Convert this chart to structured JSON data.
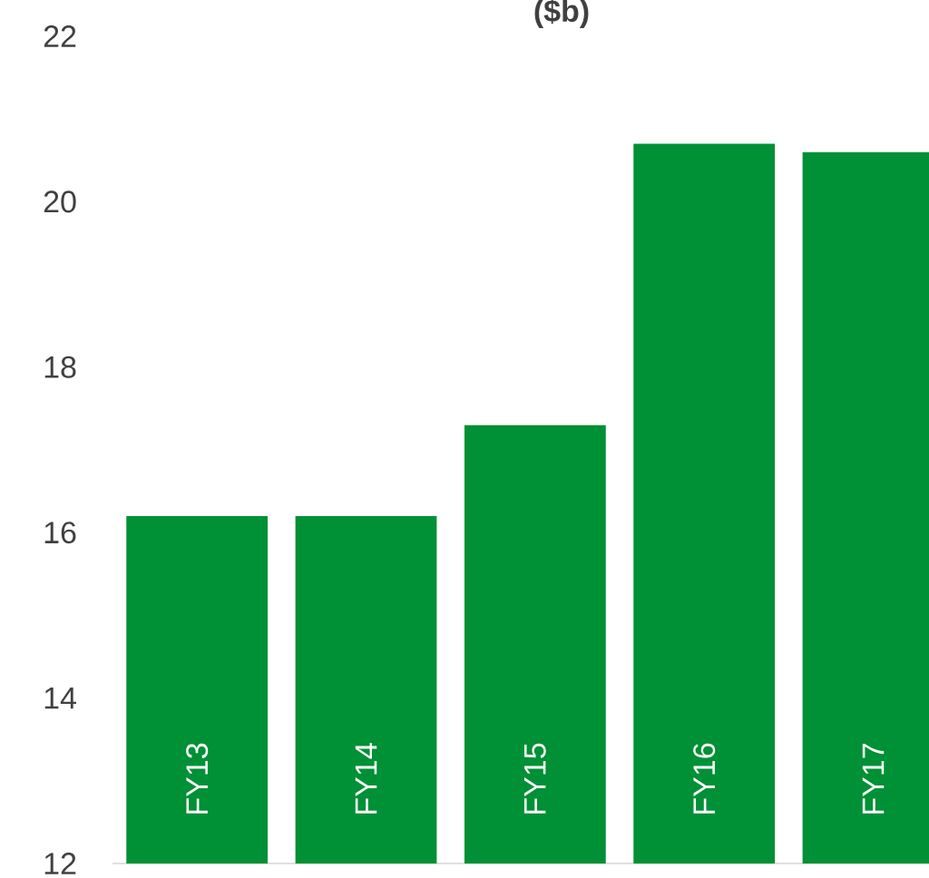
{
  "chart_data": {
    "type": "bar",
    "title": "($b)",
    "categories": [
      "FY13",
      "FY14",
      "FY15",
      "FY16",
      "FY17"
    ],
    "values": [
      16.2,
      16.2,
      17.3,
      20.7,
      20.6
    ],
    "color": "#009035",
    "ylim": [
      12,
      22
    ],
    "yticks": [
      12,
      14,
      16,
      18,
      20,
      22
    ]
  }
}
